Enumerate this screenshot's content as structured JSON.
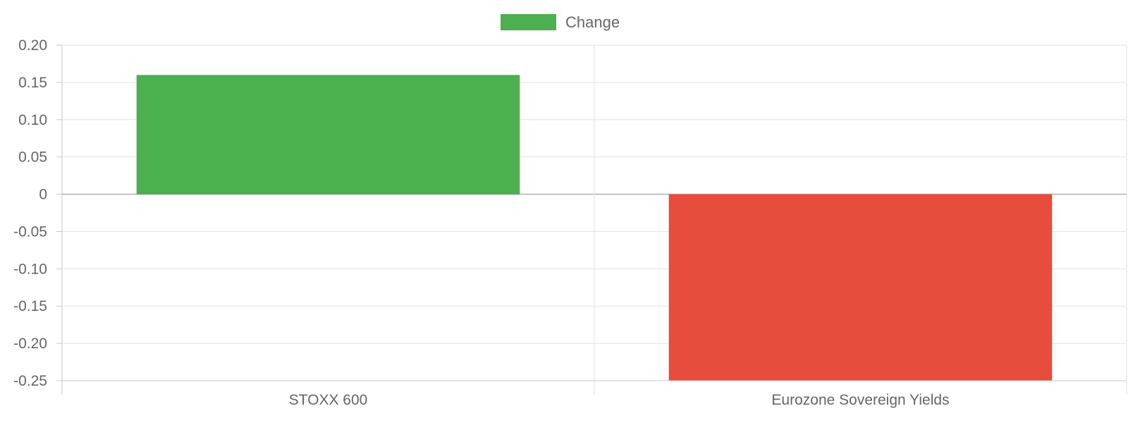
{
  "chart_data": {
    "type": "bar",
    "categories": [
      "STOXX 600",
      "Eurozone Sovereign Yields"
    ],
    "series": [
      {
        "name": "Change",
        "values": [
          0.16,
          -0.25
        ],
        "colors": [
          "#4caf50",
          "#e74c3c"
        ]
      }
    ],
    "ylim": [
      -0.25,
      0.2
    ],
    "yticks": [
      0.2,
      0.15,
      0.1,
      0.05,
      0,
      -0.05,
      -0.1,
      -0.15,
      -0.2,
      -0.25
    ],
    "ytick_labels": [
      "0.20",
      "0.15",
      "0.10",
      "0.05",
      "0",
      "-0.05",
      "-0.10",
      "-0.15",
      "-0.20",
      "-0.25"
    ],
    "grid": true,
    "legend": {
      "position": "top-center",
      "entries": [
        {
          "label": "Change",
          "color": "#4caf50"
        }
      ]
    }
  }
}
